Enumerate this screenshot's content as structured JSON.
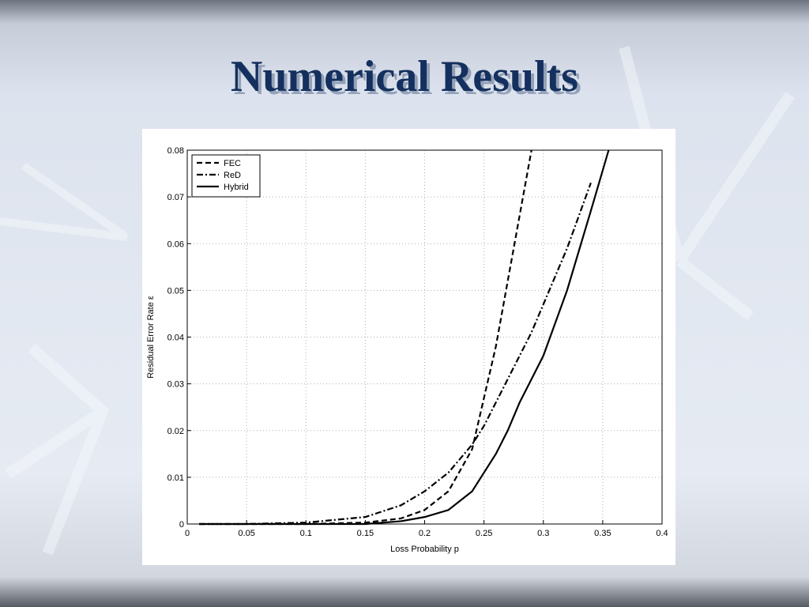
{
  "title": "Numerical Results",
  "chart_data": {
    "type": "line",
    "xlabel": "Loss Probability p",
    "ylabel": "Residual Error Rate ε",
    "x": [
      0.01,
      0.05,
      0.1,
      0.15,
      0.18,
      0.2,
      0.22,
      0.24,
      0.25,
      0.26,
      0.27,
      0.28,
      0.29,
      0.3,
      0.32,
      0.34,
      0.355
    ],
    "series": [
      {
        "name": "FEC",
        "color": "#000000",
        "dash": "dashed",
        "values": [
          0,
          0,
          0,
          0.0003,
          0.0012,
          0.003,
          0.007,
          0.016,
          0.027,
          0.038,
          0.052,
          0.066,
          0.08,
          null,
          null,
          null,
          null
        ]
      },
      {
        "name": "ReD",
        "color": "#000000",
        "dash": "dashdot",
        "values": [
          0,
          0,
          0.0003,
          0.0015,
          0.004,
          0.007,
          0.011,
          0.017,
          0.021,
          0.026,
          0.031,
          0.036,
          0.041,
          0.047,
          0.059,
          0.073,
          null
        ]
      },
      {
        "name": "Hybrid",
        "color": "#000000",
        "dash": "solid",
        "values": [
          0,
          0,
          0,
          0,
          0.0006,
          0.0015,
          0.003,
          0.007,
          0.011,
          0.015,
          0.02,
          0.026,
          0.031,
          0.036,
          0.05,
          0.067,
          0.08
        ]
      }
    ],
    "xlim": [
      0,
      0.4
    ],
    "xticks": [
      0,
      0.05,
      0.1,
      0.15,
      0.2,
      0.25,
      0.3,
      0.35,
      0.4
    ],
    "ylim": [
      0,
      0.08
    ],
    "yticks": [
      0,
      0.01,
      0.02,
      0.03,
      0.04,
      0.05,
      0.06,
      0.07,
      0.08
    ],
    "grid": true,
    "legend": "upper-left"
  }
}
